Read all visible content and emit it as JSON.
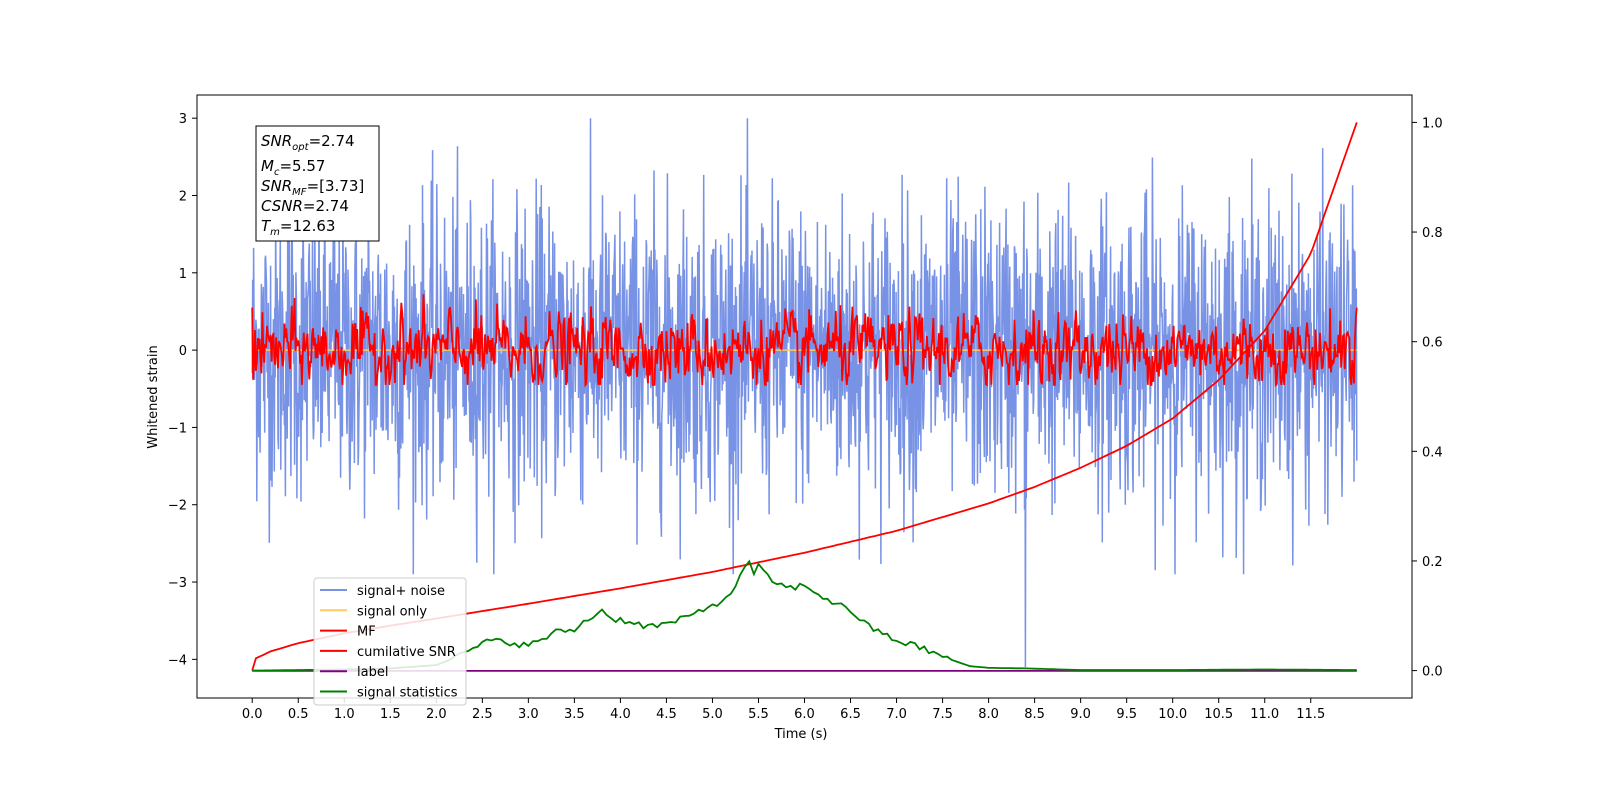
{
  "chart_data": {
    "type": "line",
    "xlabel": "Time (s)",
    "ylabel": "Whitened strain",
    "xlim": [
      -0.6,
      12.6
    ],
    "ylim": [
      -4.5,
      3.3
    ],
    "y2lim": [
      -0.05,
      1.05
    ],
    "xticks": [
      "0.0",
      "0.5",
      "1.0",
      "1.5",
      "2.0",
      "2.5",
      "3.0",
      "3.5",
      "4.0",
      "4.5",
      "5.0",
      "5.5",
      "6.0",
      "6.5",
      "7.0",
      "7.5",
      "8.0",
      "8.5",
      "9.0",
      "9.5",
      "10.0",
      "10.5",
      "11.0",
      "11.5"
    ],
    "yticks": [
      "3",
      "2",
      "1",
      "0",
      "−1",
      "−2",
      "−3",
      "−4"
    ],
    "y2ticks": [
      "1.0",
      "0.8",
      "0.6",
      "0.4",
      "0.2",
      "0.0"
    ],
    "info_box": {
      "snr_opt": "=2.74",
      "mc": "=5.57",
      "snr_mf": "=[3.73]",
      "csnr": "=2.74",
      "tm": "=12.63"
    },
    "legend_position": "lower-left",
    "series": [
      {
        "name": "signal+ noise",
        "color": "#7893e6",
        "axis": "left",
        "description_values": {
          "x_range": [
            0,
            12.0
          ],
          "y_range": [
            -2.9,
            3.0
          ],
          "spike": {
            "x": 8.4,
            "y": -4.1
          }
        }
      },
      {
        "name": "signal only",
        "color": "#ffc966",
        "axis": "left",
        "description_values": {
          "x_range": [
            0,
            12.0
          ],
          "y": 0.0
        }
      },
      {
        "name": "MF",
        "color": "#ff0000",
        "axis": "left",
        "description_values": {
          "x_range": [
            0,
            12.0
          ],
          "y_range": [
            -0.45,
            0.9
          ]
        }
      },
      {
        "name": "cumilative SNR",
        "color": "#ff0000",
        "axis": "right",
        "x": [
          0,
          0.01,
          0.2,
          0.5,
          1.0,
          1.5,
          2.0,
          3.0,
          4.0,
          5.0,
          6.0,
          7.0,
          8.0,
          8.5,
          9.0,
          9.5,
          10.0,
          10.5,
          11.0,
          11.5,
          12.0
        ],
        "y": [
          0.0,
          0.02,
          0.035,
          0.05,
          0.068,
          0.082,
          0.095,
          0.122,
          0.15,
          0.18,
          0.215,
          0.255,
          0.305,
          0.335,
          0.37,
          0.41,
          0.46,
          0.53,
          0.62,
          0.76,
          1.0
        ]
      },
      {
        "name": "label",
        "color": "#800080",
        "axis": "left",
        "x": [
          0,
          12.0
        ],
        "y": [
          -4.15,
          -4.15
        ]
      },
      {
        "name": "signal statistics",
        "color": "#008000",
        "axis": "right",
        "x": [
          0,
          0.5,
          1.0,
          1.5,
          2.0,
          2.3,
          2.5,
          2.7,
          3.0,
          3.3,
          3.5,
          3.7,
          3.8,
          3.9,
          4.1,
          4.3,
          4.5,
          4.7,
          5.0,
          5.2,
          5.33,
          5.4,
          5.45,
          5.5,
          5.6,
          5.8,
          6.0,
          6.3,
          6.5,
          6.7,
          7.0,
          7.3,
          7.5,
          7.8,
          8.0,
          8.4,
          9.0,
          10.0,
          11.0,
          12.0
        ],
        "y": [
          0.0,
          0.001,
          0.002,
          0.004,
          0.01,
          0.03,
          0.05,
          0.055,
          0.045,
          0.07,
          0.075,
          0.1,
          0.11,
          0.095,
          0.09,
          0.08,
          0.085,
          0.095,
          0.12,
          0.135,
          0.19,
          0.195,
          0.175,
          0.19,
          0.17,
          0.15,
          0.155,
          0.125,
          0.11,
          0.08,
          0.055,
          0.04,
          0.025,
          0.008,
          0.005,
          0.004,
          0.001,
          0.001,
          0.002,
          0.001
        ]
      }
    ]
  }
}
